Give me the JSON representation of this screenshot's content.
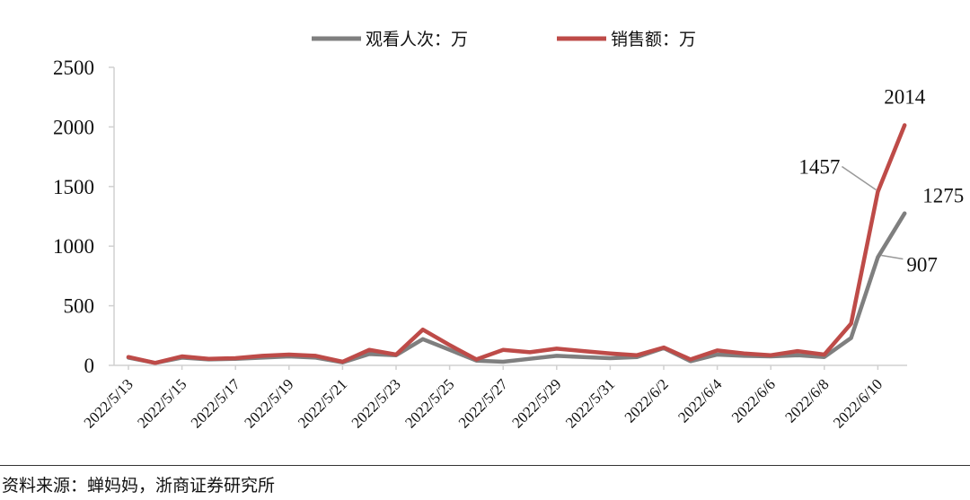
{
  "chart_data": {
    "type": "line",
    "categories": [
      "2022/5/13",
      "2022/5/14",
      "2022/5/15",
      "2022/5/16",
      "2022/5/17",
      "2022/5/18",
      "2022/5/19",
      "2022/5/20",
      "2022/5/21",
      "2022/5/22",
      "2022/5/23",
      "2022/5/24",
      "2022/5/25",
      "2022/5/26",
      "2022/5/27",
      "2022/5/28",
      "2022/5/29",
      "2022/5/30",
      "2022/5/31",
      "2022/6/1",
      "2022/6/2",
      "2022/6/3",
      "2022/6/4",
      "2022/6/5",
      "2022/6/6",
      "2022/6/7",
      "2022/6/8",
      "2022/6/9",
      "2022/6/10",
      "2022/6/11"
    ],
    "tick_labels": [
      "2022/5/13",
      "2022/5/15",
      "2022/5/17",
      "2022/5/19",
      "2022/5/21",
      "2022/5/23",
      "2022/5/25",
      "2022/5/27",
      "2022/5/29",
      "2022/5/31",
      "2022/6/2",
      "2022/6/4",
      "2022/6/6",
      "2022/6/8",
      "2022/6/10"
    ],
    "series": [
      {
        "name": "观看人次：万",
        "color": "#7f7f7f",
        "values": [
          65,
          20,
          65,
          50,
          55,
          65,
          75,
          65,
          25,
          95,
          85,
          220,
          130,
          40,
          30,
          55,
          80,
          70,
          60,
          70,
          145,
          35,
          90,
          80,
          75,
          85,
          70,
          230,
          907,
          1275
        ]
      },
      {
        "name": "销售额：万",
        "color": "#be4b48",
        "values": [
          70,
          20,
          75,
          55,
          60,
          80,
          90,
          80,
          30,
          130,
          90,
          300,
          170,
          50,
          130,
          110,
          140,
          120,
          100,
          85,
          150,
          50,
          125,
          100,
          85,
          120,
          90,
          350,
          1457,
          2014
        ]
      }
    ],
    "annotations": [
      {
        "text": "2014",
        "series": 1,
        "index": 29
      },
      {
        "text": "1457",
        "series": 1,
        "index": 28
      },
      {
        "text": "1275",
        "series": 0,
        "index": 29
      },
      {
        "text": "907",
        "series": 0,
        "index": 28
      }
    ],
    "y_ticks": [
      0,
      500,
      1000,
      1500,
      2000,
      2500
    ],
    "ylim": [
      0,
      2500
    ],
    "legend_position": "top-center",
    "grid": false
  },
  "source": "资料来源：蝉妈妈，浙商证券研究所"
}
